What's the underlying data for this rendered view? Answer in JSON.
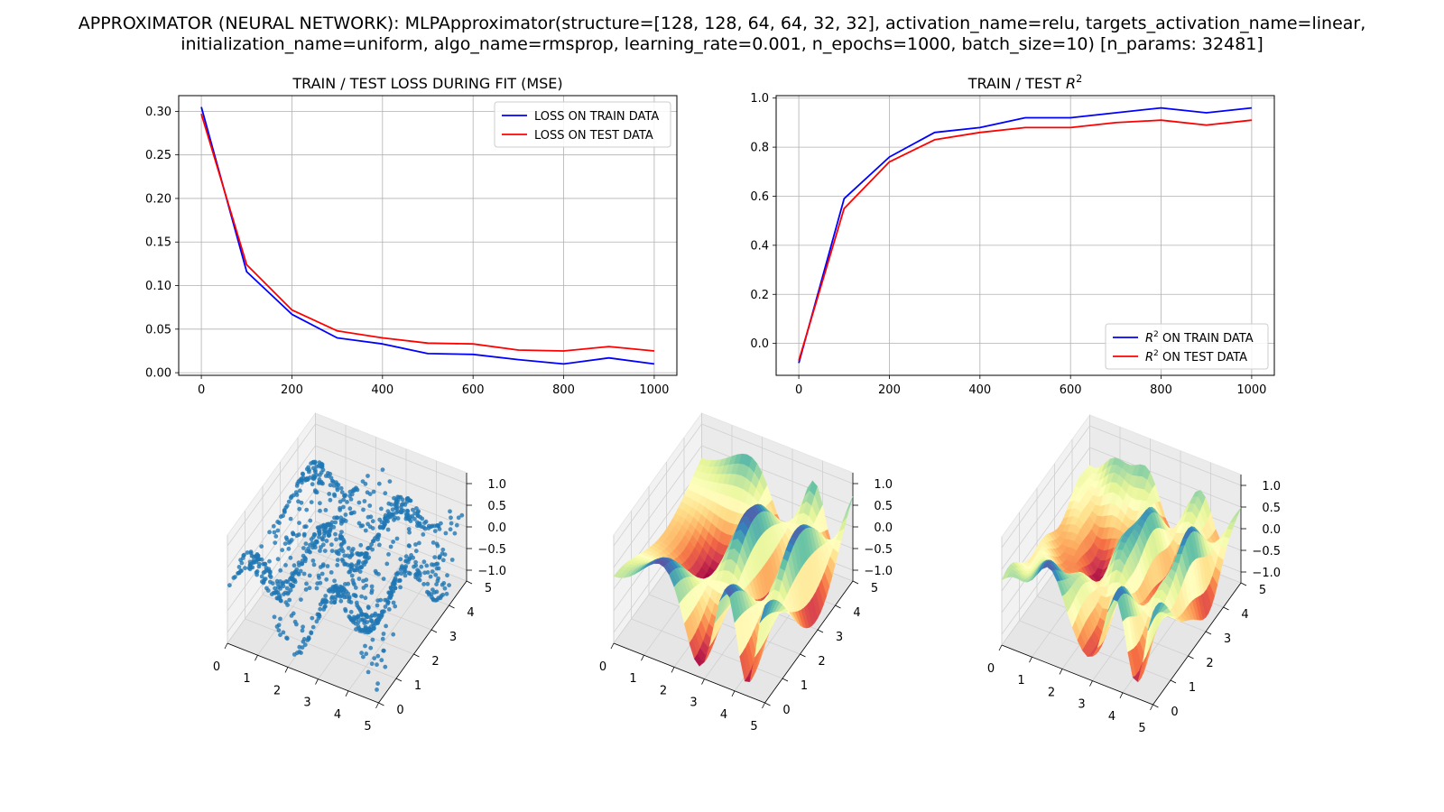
{
  "figure": {
    "suptitle_line1": "APPROXIMATOR (NEURAL NETWORK): MLPApproximator(structure=[128, 128, 64, 64, 32, 32], activation_name=relu, targets_activation_name=linear,",
    "suptitle_line2": "initialization_name=uniform, algo_name=rmsprop, learning_rate=0.001, n_epochs=1000, batch_size=10) [n_params: 32481]"
  },
  "chart_data": [
    {
      "type": "line",
      "title": "TRAIN / TEST LOSS DURING FIT (MSE)",
      "xlabel": "",
      "ylabel": "",
      "x": [
        0,
        100,
        200,
        300,
        400,
        500,
        600,
        700,
        800,
        900,
        1000
      ],
      "xlim": [
        -50,
        1050
      ],
      "ylim": [
        -0.003,
        0.318
      ],
      "xticks": [
        "0",
        "200",
        "400",
        "600",
        "800",
        "1000"
      ],
      "yticks": [
        "0.00",
        "0.05",
        "0.10",
        "0.15",
        "0.20",
        "0.25",
        "0.30"
      ],
      "grid": true,
      "legend": "top-right",
      "series": [
        {
          "name": "LOSS ON TRAIN DATA",
          "color": "#0000ff",
          "values": [
            0.305,
            0.116,
            0.067,
            0.04,
            0.033,
            0.022,
            0.021,
            0.015,
            0.01,
            0.017,
            0.01
          ]
        },
        {
          "name": "LOSS ON TEST DATA",
          "color": "#ff0000",
          "values": [
            0.297,
            0.124,
            0.072,
            0.048,
            0.04,
            0.034,
            0.033,
            0.026,
            0.025,
            0.03,
            0.025
          ]
        }
      ]
    },
    {
      "type": "line",
      "title": "TRAIN / TEST R",
      "title_sup": "2",
      "xlabel": "",
      "ylabel": "",
      "x": [
        0,
        100,
        200,
        300,
        400,
        500,
        600,
        700,
        800,
        900,
        1000
      ],
      "xlim": [
        -50,
        1050
      ],
      "ylim": [
        -0.13,
        1.01
      ],
      "xticks": [
        "0",
        "200",
        "400",
        "600",
        "800",
        "1000"
      ],
      "yticks": [
        "0.0",
        "0.2",
        "0.4",
        "0.6",
        "0.8",
        "1.0"
      ],
      "grid": true,
      "legend": "bottom-right",
      "series": [
        {
          "name": "R",
          "name_sup": "2",
          "name_rest": " ON TRAIN DATA",
          "color": "#0000ff",
          "values": [
            -0.08,
            0.59,
            0.76,
            0.86,
            0.88,
            0.92,
            0.92,
            0.94,
            0.96,
            0.94,
            0.96
          ]
        },
        {
          "name": "R",
          "name_sup": "2",
          "name_rest": " ON TEST DATA",
          "color": "#ff0000",
          "values": [
            -0.07,
            0.55,
            0.74,
            0.83,
            0.86,
            0.88,
            0.88,
            0.9,
            0.91,
            0.89,
            0.91
          ]
        }
      ]
    },
    {
      "type": "scatter",
      "title": "",
      "projection": "3d",
      "xticks": [
        "0",
        "1",
        "2",
        "3",
        "4",
        "5"
      ],
      "yticks": [
        "0",
        "1",
        "2",
        "3",
        "4",
        "5"
      ],
      "zticks": [
        "−1.0",
        "−0.5",
        "0.0",
        "0.5",
        "1.0"
      ],
      "point_color": "#1f77b4",
      "n_points": 1000
    },
    {
      "type": "surface",
      "title": "",
      "projection": "3d",
      "colormap": "Spectral",
      "xticks": [
        "0",
        "1",
        "2",
        "3",
        "4",
        "5"
      ],
      "yticks": [
        "0",
        "1",
        "2",
        "3",
        "4",
        "5"
      ],
      "zticks": [
        "−1.0",
        "−0.5",
        "0.0",
        "0.5",
        "1.0"
      ]
    },
    {
      "type": "surface",
      "title": "",
      "projection": "3d",
      "colormap": "Spectral",
      "xticks": [
        "0",
        "1",
        "2",
        "3",
        "4",
        "5"
      ],
      "yticks": [
        "0",
        "1",
        "2",
        "3",
        "4",
        "5"
      ],
      "zticks": [
        "−1.0",
        "−0.5",
        "0.0",
        "0.5",
        "1.0"
      ]
    }
  ]
}
